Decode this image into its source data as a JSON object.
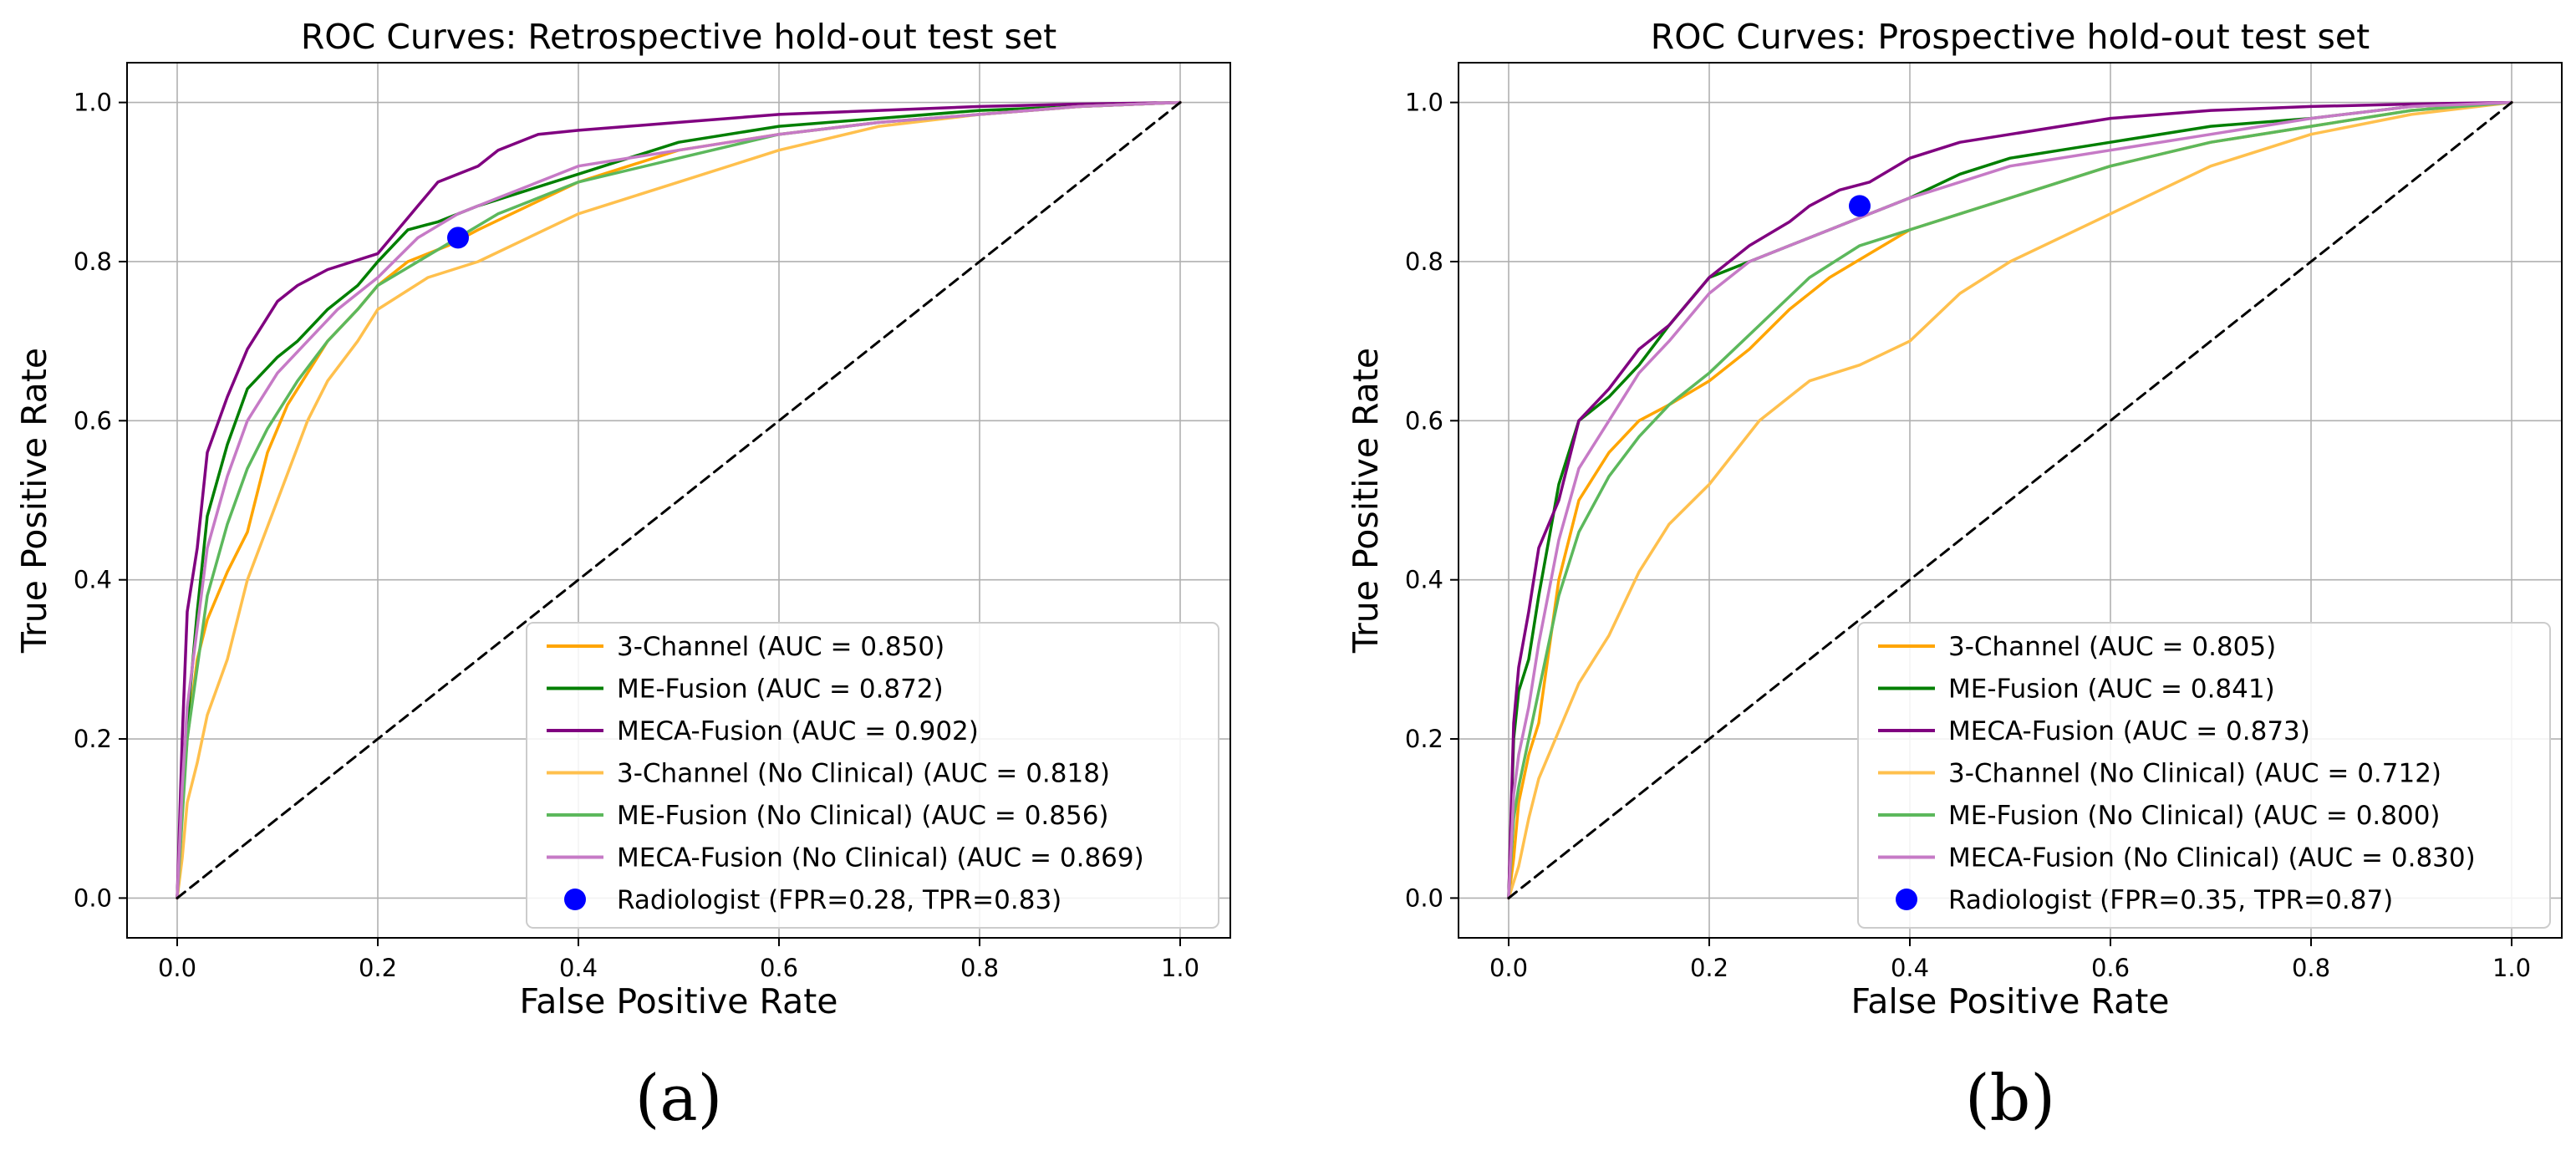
{
  "chart_data": [
    {
      "type": "line",
      "panel_label": "(a)",
      "title": "ROC Curves: Retrospective hold-out test set",
      "xlabel": "False Positive Rate",
      "ylabel": "True Positive Rate",
      "xlim": [
        -0.05,
        1.05
      ],
      "ylim": [
        -0.05,
        1.05
      ],
      "xticks": [
        "0.0",
        "0.2",
        "0.4",
        "0.6",
        "0.8",
        "1.0"
      ],
      "yticks": [
        "0.0",
        "0.2",
        "0.4",
        "0.6",
        "0.8",
        "1.0"
      ],
      "grid": true,
      "legend_position": "lower-right",
      "series": [
        {
          "name": "3-Channel (AUC = 0.850)",
          "color": "#ffa500",
          "width": 3.5,
          "x": [
            0,
            0.005,
            0.01,
            0.02,
            0.03,
            0.05,
            0.07,
            0.09,
            0.11,
            0.13,
            0.15,
            0.18,
            0.2,
            0.23,
            0.27,
            0.3,
            0.35,
            0.4,
            0.45,
            0.5,
            0.6,
            0.7,
            0.8,
            0.9,
            1.0
          ],
          "y": [
            0,
            0.12,
            0.2,
            0.3,
            0.35,
            0.41,
            0.46,
            0.56,
            0.62,
            0.66,
            0.7,
            0.74,
            0.77,
            0.8,
            0.82,
            0.84,
            0.87,
            0.9,
            0.92,
            0.94,
            0.96,
            0.975,
            0.985,
            0.995,
            1.0
          ]
        },
        {
          "name": "ME-Fusion (AUC = 0.872)",
          "color": "#007f00",
          "width": 3.5,
          "x": [
            0,
            0.005,
            0.01,
            0.02,
            0.03,
            0.05,
            0.07,
            0.1,
            0.12,
            0.15,
            0.18,
            0.2,
            0.23,
            0.26,
            0.3,
            0.35,
            0.4,
            0.45,
            0.5,
            0.6,
            0.7,
            0.8,
            0.9,
            1.0
          ],
          "y": [
            0,
            0.15,
            0.22,
            0.36,
            0.48,
            0.57,
            0.64,
            0.68,
            0.7,
            0.74,
            0.77,
            0.8,
            0.84,
            0.85,
            0.87,
            0.89,
            0.91,
            0.93,
            0.95,
            0.97,
            0.98,
            0.99,
            0.995,
            1.0
          ]
        },
        {
          "name": "MECA-Fusion (AUC = 0.902)",
          "color": "#800080",
          "width": 3.5,
          "x": [
            0,
            0.005,
            0.01,
            0.02,
            0.03,
            0.05,
            0.07,
            0.09,
            0.1,
            0.12,
            0.15,
            0.2,
            0.22,
            0.24,
            0.26,
            0.3,
            0.32,
            0.36,
            0.4,
            0.5,
            0.6,
            0.7,
            0.8,
            0.9,
            1.0
          ],
          "y": [
            0,
            0.2,
            0.36,
            0.44,
            0.56,
            0.63,
            0.69,
            0.73,
            0.75,
            0.77,
            0.79,
            0.81,
            0.84,
            0.87,
            0.9,
            0.92,
            0.94,
            0.96,
            0.965,
            0.975,
            0.985,
            0.99,
            0.995,
            0.998,
            1.0
          ]
        },
        {
          "name": "3-Channel (No Clinical) (AUC = 0.818)",
          "color": "#ffc04d",
          "width": 3.5,
          "x": [
            0,
            0.005,
            0.01,
            0.02,
            0.03,
            0.05,
            0.07,
            0.1,
            0.13,
            0.15,
            0.18,
            0.2,
            0.25,
            0.3,
            0.35,
            0.4,
            0.45,
            0.5,
            0.6,
            0.7,
            0.8,
            0.9,
            1.0
          ],
          "y": [
            0,
            0.05,
            0.12,
            0.17,
            0.23,
            0.3,
            0.4,
            0.5,
            0.6,
            0.65,
            0.7,
            0.74,
            0.78,
            0.8,
            0.83,
            0.86,
            0.88,
            0.9,
            0.94,
            0.97,
            0.985,
            0.995,
            1.0
          ]
        },
        {
          "name": "ME-Fusion (No Clinical) (AUC = 0.856)",
          "color": "#5cb85c",
          "width": 3.5,
          "x": [
            0,
            0.005,
            0.01,
            0.02,
            0.03,
            0.05,
            0.07,
            0.09,
            0.12,
            0.15,
            0.18,
            0.2,
            0.24,
            0.28,
            0.32,
            0.36,
            0.4,
            0.5,
            0.6,
            0.7,
            0.8,
            0.9,
            1.0
          ],
          "y": [
            0,
            0.1,
            0.2,
            0.29,
            0.38,
            0.47,
            0.54,
            0.59,
            0.65,
            0.7,
            0.74,
            0.77,
            0.8,
            0.83,
            0.86,
            0.88,
            0.9,
            0.93,
            0.96,
            0.975,
            0.985,
            0.995,
            1.0
          ]
        },
        {
          "name": "MECA-Fusion (No Clinical) (AUC = 0.869)",
          "color": "#c67ac6",
          "width": 3.5,
          "x": [
            0,
            0.005,
            0.01,
            0.02,
            0.03,
            0.05,
            0.07,
            0.1,
            0.13,
            0.16,
            0.2,
            0.24,
            0.28,
            0.32,
            0.36,
            0.4,
            0.5,
            0.6,
            0.7,
            0.8,
            0.9,
            1.0
          ],
          "y": [
            0,
            0.14,
            0.24,
            0.34,
            0.44,
            0.53,
            0.6,
            0.66,
            0.7,
            0.74,
            0.78,
            0.83,
            0.86,
            0.88,
            0.9,
            0.92,
            0.94,
            0.96,
            0.975,
            0.985,
            0.995,
            1.0
          ]
        },
        {
          "name": "chance",
          "color": "#000000",
          "width": 3,
          "dashed": true,
          "in_legend": false,
          "x": [
            0,
            1
          ],
          "y": [
            0,
            1
          ]
        }
      ],
      "point": {
        "name": "Radiologist (FPR=0.28, TPR=0.83)",
        "x": 0.28,
        "y": 0.83,
        "color": "#0000ff"
      }
    },
    {
      "type": "line",
      "panel_label": "(b)",
      "title": "ROC Curves: Prospective hold-out test set",
      "xlabel": "False Positive Rate",
      "ylabel": "True Positive Rate",
      "xlim": [
        -0.05,
        1.05
      ],
      "ylim": [
        -0.05,
        1.05
      ],
      "xticks": [
        "0.0",
        "0.2",
        "0.4",
        "0.6",
        "0.8",
        "1.0"
      ],
      "yticks": [
        "0.0",
        "0.2",
        "0.4",
        "0.6",
        "0.8",
        "1.0"
      ],
      "grid": true,
      "legend_position": "lower-right",
      "series": [
        {
          "name": "3-Channel (AUC = 0.805)",
          "color": "#ffa500",
          "width": 3.5,
          "x": [
            0,
            0.005,
            0.01,
            0.02,
            0.03,
            0.05,
            0.07,
            0.1,
            0.13,
            0.16,
            0.2,
            0.24,
            0.28,
            0.32,
            0.36,
            0.4,
            0.45,
            0.5,
            0.6,
            0.7,
            0.8,
            0.9,
            1.0
          ],
          "y": [
            0,
            0.05,
            0.12,
            0.18,
            0.22,
            0.4,
            0.5,
            0.56,
            0.6,
            0.62,
            0.65,
            0.69,
            0.74,
            0.78,
            0.81,
            0.84,
            0.86,
            0.88,
            0.92,
            0.95,
            0.97,
            0.99,
            1.0
          ]
        },
        {
          "name": "ME-Fusion (AUC = 0.841)",
          "color": "#007f00",
          "width": 3.5,
          "x": [
            0,
            0.005,
            0.01,
            0.02,
            0.03,
            0.05,
            0.07,
            0.1,
            0.13,
            0.16,
            0.2,
            0.24,
            0.28,
            0.32,
            0.36,
            0.4,
            0.45,
            0.5,
            0.55,
            0.6,
            0.7,
            0.8,
            0.9,
            1.0
          ],
          "y": [
            0,
            0.2,
            0.26,
            0.3,
            0.38,
            0.52,
            0.6,
            0.63,
            0.67,
            0.72,
            0.78,
            0.8,
            0.82,
            0.84,
            0.86,
            0.88,
            0.91,
            0.93,
            0.94,
            0.95,
            0.97,
            0.98,
            0.995,
            1.0
          ]
        },
        {
          "name": "MECA-Fusion (AUC = 0.873)",
          "color": "#800080",
          "width": 3.5,
          "x": [
            0,
            0.005,
            0.01,
            0.02,
            0.03,
            0.05,
            0.07,
            0.1,
            0.13,
            0.16,
            0.2,
            0.24,
            0.28,
            0.3,
            0.33,
            0.36,
            0.4,
            0.45,
            0.5,
            0.6,
            0.7,
            0.8,
            0.9,
            1.0
          ],
          "y": [
            0,
            0.22,
            0.29,
            0.36,
            0.44,
            0.5,
            0.6,
            0.64,
            0.69,
            0.72,
            0.78,
            0.82,
            0.85,
            0.87,
            0.89,
            0.9,
            0.93,
            0.95,
            0.96,
            0.98,
            0.99,
            0.995,
            0.998,
            1.0
          ]
        },
        {
          "name": "3-Channel (No Clinical) (AUC = 0.712)",
          "color": "#ffc04d",
          "width": 3.5,
          "x": [
            0,
            0.005,
            0.01,
            0.02,
            0.03,
            0.05,
            0.07,
            0.1,
            0.13,
            0.16,
            0.2,
            0.25,
            0.3,
            0.35,
            0.4,
            0.45,
            0.5,
            0.6,
            0.7,
            0.8,
            0.9,
            1.0
          ],
          "y": [
            0,
            0.02,
            0.04,
            0.1,
            0.15,
            0.21,
            0.27,
            0.33,
            0.41,
            0.47,
            0.52,
            0.6,
            0.65,
            0.67,
            0.7,
            0.76,
            0.8,
            0.86,
            0.92,
            0.96,
            0.985,
            1.0
          ]
        },
        {
          "name": "ME-Fusion (No Clinical) (AUC = 0.800)",
          "color": "#5cb85c",
          "width": 3.5,
          "x": [
            0,
            0.005,
            0.01,
            0.02,
            0.03,
            0.05,
            0.07,
            0.1,
            0.13,
            0.16,
            0.2,
            0.25,
            0.3,
            0.35,
            0.4,
            0.45,
            0.5,
            0.6,
            0.7,
            0.8,
            0.9,
            1.0
          ],
          "y": [
            0,
            0.1,
            0.14,
            0.2,
            0.26,
            0.38,
            0.46,
            0.53,
            0.58,
            0.62,
            0.66,
            0.72,
            0.78,
            0.82,
            0.84,
            0.86,
            0.88,
            0.92,
            0.95,
            0.97,
            0.99,
            1.0
          ]
        },
        {
          "name": "MECA-Fusion (No Clinical) (AUC = 0.830)",
          "color": "#c67ac6",
          "width": 3.5,
          "x": [
            0,
            0.005,
            0.01,
            0.02,
            0.03,
            0.05,
            0.07,
            0.1,
            0.13,
            0.16,
            0.2,
            0.24,
            0.28,
            0.32,
            0.36,
            0.4,
            0.45,
            0.5,
            0.6,
            0.7,
            0.8,
            0.9,
            1.0
          ],
          "y": [
            0,
            0.13,
            0.18,
            0.24,
            0.32,
            0.45,
            0.54,
            0.6,
            0.66,
            0.7,
            0.76,
            0.8,
            0.82,
            0.84,
            0.86,
            0.88,
            0.9,
            0.92,
            0.94,
            0.96,
            0.98,
            0.995,
            1.0
          ]
        },
        {
          "name": "chance",
          "color": "#000000",
          "width": 3,
          "dashed": true,
          "in_legend": false,
          "x": [
            0,
            1
          ],
          "y": [
            0,
            1
          ]
        }
      ],
      "point": {
        "name": "Radiologist (FPR=0.35, TPR=0.87)",
        "x": 0.35,
        "y": 0.87,
        "color": "#0000ff"
      }
    }
  ]
}
